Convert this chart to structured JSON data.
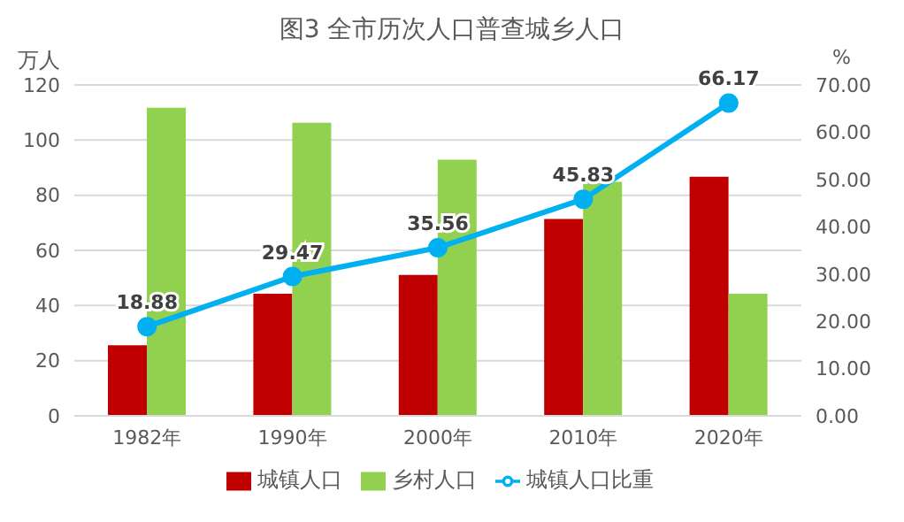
{
  "chart_data": {
    "type": "bar",
    "title": "图3  全市历次人口普查城乡人口",
    "ylabel": "万人",
    "y2label": "%",
    "categories": [
      "1982年",
      "1990年",
      "2000年",
      "2010年",
      "2020年"
    ],
    "series": [
      {
        "name": "城镇人口",
        "color": "#c00000",
        "values": [
          25.6,
          44.3,
          51.1,
          71.4,
          86.7
        ]
      },
      {
        "name": "乡村人口",
        "color": "#92d050",
        "values": [
          111.7,
          106.3,
          92.9,
          84.9,
          44.3
        ]
      },
      {
        "name": "城镇人口比重",
        "type": "line",
        "axis": "y2",
        "color": "#00b0f0",
        "values": [
          18.88,
          29.47,
          35.56,
          45.83,
          66.17
        ],
        "value_labels": [
          "18.88",
          "29.47",
          "35.56",
          "45.83",
          "66.17"
        ]
      }
    ],
    "ylim": [
      0,
      120
    ],
    "yticks": [
      0,
      20,
      40,
      60,
      80,
      100,
      120
    ],
    "y2lim": [
      0,
      70
    ],
    "y2ticks": [
      {
        "value": 0,
        "label": "0.00"
      },
      {
        "value": 10,
        "label": "10.00"
      },
      {
        "value": 20,
        "label": "20.00"
      },
      {
        "value": 30,
        "label": "30.00"
      },
      {
        "value": 40,
        "label": "40.00"
      },
      {
        "value": 50,
        "label": "50.00"
      },
      {
        "value": 60,
        "label": "60.00"
      },
      {
        "value": 70,
        "label": "70.00"
      }
    ],
    "grid": "y",
    "legend": "bottom",
    "marker": "circle",
    "line_style": "solid"
  }
}
